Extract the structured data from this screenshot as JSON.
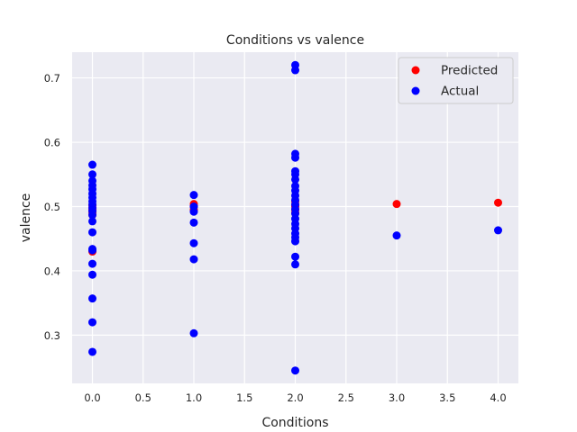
{
  "chart_data": {
    "type": "scatter",
    "title": "Conditions vs valence",
    "xlabel": "Conditions",
    "ylabel": "valence",
    "xlim": [
      -0.2,
      4.2
    ],
    "ylim": [
      0.225,
      0.74
    ],
    "xticks": [
      0.0,
      0.5,
      1.0,
      1.5,
      2.0,
      2.5,
      3.0,
      3.5,
      4.0
    ],
    "xtick_labels": [
      "0.0",
      "0.5",
      "1.0",
      "1.5",
      "2.0",
      "2.5",
      "3.0",
      "3.5",
      "4.0"
    ],
    "yticks": [
      0.3,
      0.4,
      0.5,
      0.6,
      0.7
    ],
    "ytick_labels": [
      "0.3",
      "0.4",
      "0.5",
      "0.6",
      "0.7"
    ],
    "grid": true,
    "legend_position": "top-right",
    "series": [
      {
        "name": "Predicted",
        "color": "#ff0000",
        "points": [
          [
            0,
            0.487
          ],
          [
            0,
            0.491
          ],
          [
            0,
            0.495
          ],
          [
            0,
            0.498
          ],
          [
            0,
            0.502
          ],
          [
            0,
            0.43
          ],
          [
            1,
            0.495
          ],
          [
            1,
            0.5
          ],
          [
            1,
            0.504
          ],
          [
            2,
            0.49
          ],
          [
            2,
            0.495
          ],
          [
            2,
            0.5
          ],
          [
            2,
            0.503
          ],
          [
            2,
            0.508
          ],
          [
            3,
            0.504
          ],
          [
            4,
            0.506
          ]
        ]
      },
      {
        "name": "Actual",
        "color": "#0000ff",
        "points": [
          [
            0,
            0.565
          ],
          [
            0,
            0.55
          ],
          [
            0,
            0.54
          ],
          [
            0,
            0.533
          ],
          [
            0,
            0.527
          ],
          [
            0,
            0.52
          ],
          [
            0,
            0.514
          ],
          [
            0,
            0.508
          ],
          [
            0,
            0.503
          ],
          [
            0,
            0.498
          ],
          [
            0,
            0.493
          ],
          [
            0,
            0.487
          ],
          [
            0,
            0.477
          ],
          [
            0,
            0.46
          ],
          [
            0,
            0.434
          ],
          [
            0,
            0.432
          ],
          [
            0,
            0.411
          ],
          [
            0,
            0.394
          ],
          [
            0,
            0.357
          ],
          [
            0,
            0.32
          ],
          [
            0,
            0.274
          ],
          [
            1,
            0.518
          ],
          [
            1,
            0.5
          ],
          [
            1,
            0.492
          ],
          [
            1,
            0.475
          ],
          [
            1,
            0.443
          ],
          [
            1,
            0.418
          ],
          [
            1,
            0.303
          ],
          [
            2,
            0.72
          ],
          [
            2,
            0.712
          ],
          [
            2,
            0.582
          ],
          [
            2,
            0.576
          ],
          [
            2,
            0.555
          ],
          [
            2,
            0.55
          ],
          [
            2,
            0.542
          ],
          [
            2,
            0.532
          ],
          [
            2,
            0.525
          ],
          [
            2,
            0.517
          ],
          [
            2,
            0.51
          ],
          [
            2,
            0.503
          ],
          [
            2,
            0.496
          ],
          [
            2,
            0.489
          ],
          [
            2,
            0.481
          ],
          [
            2,
            0.473
          ],
          [
            2,
            0.466
          ],
          [
            2,
            0.458
          ],
          [
            2,
            0.452
          ],
          [
            2,
            0.446
          ],
          [
            2,
            0.422
          ],
          [
            2,
            0.41
          ],
          [
            2,
            0.245
          ],
          [
            3,
            0.455
          ],
          [
            4,
            0.463
          ]
        ]
      }
    ]
  }
}
